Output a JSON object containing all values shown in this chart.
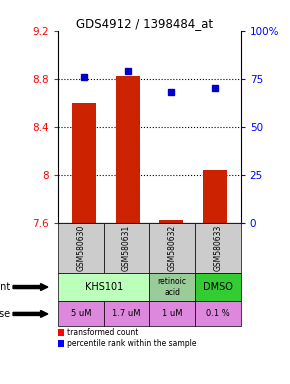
{
  "title": "GDS4912 / 1398484_at",
  "samples": [
    "GSM580630",
    "GSM580631",
    "GSM580632",
    "GSM580633"
  ],
  "bar_values": [
    8.6,
    8.82,
    7.62,
    8.04
  ],
  "bar_bottom": 7.6,
  "percentile_values": [
    76,
    79,
    68,
    70
  ],
  "bar_color": "#cc2200",
  "dot_color": "#0000cc",
  "ylim_left": [
    7.6,
    9.2
  ],
  "ylim_right": [
    0,
    100
  ],
  "yticks_left": [
    7.6,
    8.0,
    8.4,
    8.8,
    9.2
  ],
  "yticks_right": [
    0,
    25,
    50,
    75,
    100
  ],
  "ytick_labels_left": [
    "7.6",
    "8",
    "8.4",
    "8.8",
    "9.2"
  ],
  "ytick_labels_right": [
    "0",
    "25",
    "50",
    "75",
    "100%"
  ],
  "hlines": [
    8.0,
    8.4,
    8.8
  ],
  "agents": [
    [
      "KHS101",
      0,
      1
    ],
    [
      "retinoic\nacid",
      2,
      2
    ],
    [
      "DMSO",
      3,
      3
    ]
  ],
  "agent_colors": [
    "#bbffbb",
    "#99cc99",
    "#33cc33"
  ],
  "doses": [
    "5 uM",
    "1.7 uM",
    "1 uM",
    "0.1 %"
  ],
  "dose_color": "#dd88dd",
  "sample_bg_color": "#cccccc",
  "legend_red_label": "transformed count",
  "legend_blue_label": "percentile rank within the sample",
  "bar_width": 0.55
}
